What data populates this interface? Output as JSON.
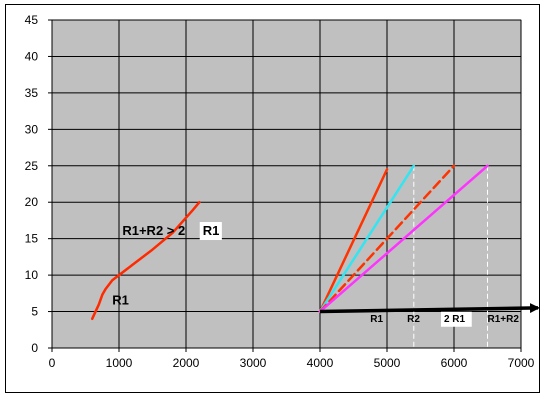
{
  "chart_data": {
    "type": "line",
    "title": "",
    "xlabel": "",
    "ylabel": "",
    "xlim": [
      0,
      7000
    ],
    "ylim": [
      0,
      45
    ],
    "grid": true,
    "background": "#c0c0c0",
    "x_ticks": [
      "0",
      "1000",
      "2000",
      "3000",
      "4000",
      "5000",
      "6000",
      "7000"
    ],
    "y_ticks": [
      "0",
      "5",
      "10",
      "15",
      "20",
      "25",
      "30",
      "35",
      "40",
      "45"
    ],
    "series": [
      {
        "name": "R1",
        "color": "#ff2a00",
        "style": "solid",
        "x": [
          600,
          700,
          750,
          800,
          900,
          1000,
          1200,
          1500,
          1800,
          2100,
          2200
        ],
        "y": [
          4,
          6,
          7.3,
          8.1,
          9.3,
          10,
          11.4,
          13.5,
          15.8,
          18.9,
          20
        ]
      },
      {
        "color": "#ff3300",
        "style": "solid",
        "x": [
          4000,
          5000
        ],
        "y": [
          5,
          24.5
        ]
      },
      {
        "color": "#33e5f0",
        "style": "solid",
        "x": [
          4000,
          5400
        ],
        "y": [
          5,
          25
        ]
      },
      {
        "color": "#ff3300",
        "style": "dashed",
        "x": [
          4000,
          6000
        ],
        "y": [
          5,
          25
        ]
      },
      {
        "color": "#ff33ff",
        "style": "solid",
        "x": [
          4000,
          6500
        ],
        "y": [
          5,
          25
        ]
      }
    ],
    "drop_lines": [
      {
        "x": 5000,
        "y": 24.5,
        "color": "#000000"
      },
      {
        "x": 5400,
        "y": 25,
        "color": "#ffffff"
      },
      {
        "x": 6000,
        "y": 25,
        "color": "#000000"
      },
      {
        "x": 6500,
        "y": 25,
        "color": "#ffffff"
      }
    ],
    "arrow": {
      "from": [
        4000,
        5
      ],
      "to": [
        7300,
        5.5
      ],
      "color": "#000000"
    },
    "annotations": [
      {
        "text": "R1",
        "x": 900,
        "y": 6,
        "boxed": false
      },
      {
        "text": "R1+R2 > 2",
        "x": 1050,
        "y": 15.5,
        "boxed": false
      },
      {
        "text": "R1",
        "x": 2250,
        "y": 15.5,
        "boxed": true
      },
      {
        "text": "R1",
        "x": 4750,
        "y": 3.6,
        "small": true
      },
      {
        "text": "R2",
        "x": 5300,
        "y": 3.6,
        "small": true
      },
      {
        "text": "2 R1",
        "x": 5850,
        "y": 3.6,
        "small": true,
        "boxed": true
      },
      {
        "text": "R1+R2",
        "x": 6500,
        "y": 3.6,
        "small": true
      }
    ]
  }
}
